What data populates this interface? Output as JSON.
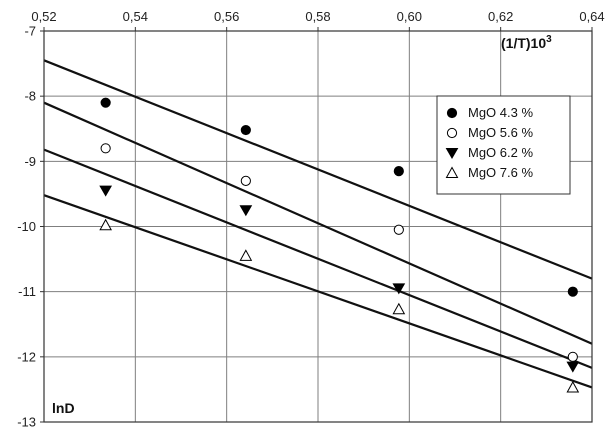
{
  "chart_data": {
    "type": "scatter",
    "title": "",
    "xlabel": "(1/T)10",
    "xlabel_superscript": "3",
    "ylabel": "lnD",
    "xlim": [
      0.52,
      0.64
    ],
    "ylim": [
      -13,
      -7
    ],
    "x_axis_position": "top",
    "x_ticks": [
      0.52,
      0.54,
      0.56,
      0.58,
      0.6,
      0.62,
      0.64
    ],
    "x_tick_labels": [
      "0,52",
      "0,54",
      "0,56",
      "0,58",
      "0,60",
      "0,62",
      "0,64"
    ],
    "y_ticks": [
      -7,
      -8,
      -9,
      -10,
      -11,
      -12,
      -13
    ],
    "y_tick_labels": [
      "-7",
      "-8",
      "-9",
      "-10",
      "-11",
      "-12",
      "-13"
    ],
    "grid": true,
    "legend_position": "right",
    "series": [
      {
        "name": "MgO 4.3 %",
        "marker": "filled-circle",
        "x": [
          0.5335,
          0.5642,
          0.5977,
          0.6358
        ],
        "y": [
          -8.1,
          -8.52,
          -9.15,
          -11.0
        ],
        "fit": [
          [
            0.52,
            -7.45
          ],
          [
            0.64,
            -10.8
          ]
        ]
      },
      {
        "name": "MgO 5.6 %",
        "marker": "open-circle",
        "x": [
          0.5335,
          0.5642,
          0.5977,
          0.6358
        ],
        "y": [
          -8.8,
          -9.3,
          -10.05,
          -12.0
        ],
        "fit": [
          [
            0.52,
            -8.1
          ],
          [
            0.64,
            -11.8
          ]
        ]
      },
      {
        "name": "MgO 6.2 %",
        "marker": "filled-triangle-down",
        "x": [
          0.5335,
          0.5642,
          0.5977,
          0.6358
        ],
        "y": [
          -9.45,
          -9.75,
          -10.95,
          -12.15
        ],
        "fit": [
          [
            0.52,
            -8.82
          ],
          [
            0.64,
            -12.17
          ]
        ]
      },
      {
        "name": "MgO 7.6 %",
        "marker": "open-triangle-up",
        "x": [
          0.5335,
          0.5642,
          0.5977,
          0.6358
        ],
        "y": [
          -9.98,
          -10.45,
          -11.27,
          -12.47
        ],
        "fit": [
          [
            0.52,
            -9.52
          ],
          [
            0.64,
            -12.47
          ]
        ]
      }
    ]
  }
}
